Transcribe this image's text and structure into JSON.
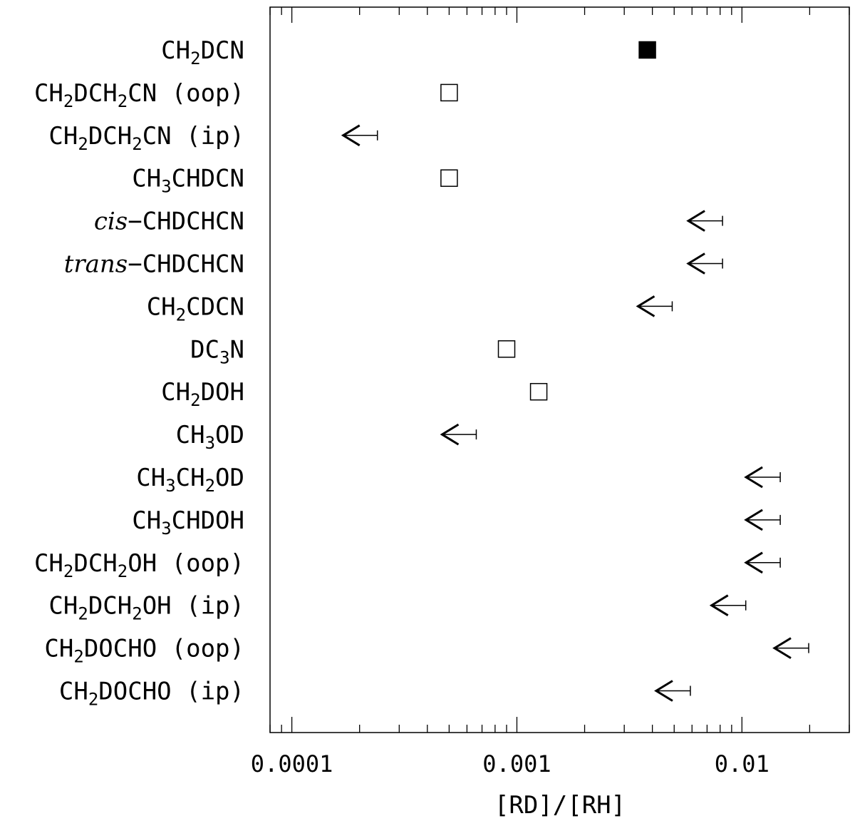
{
  "chart_data": {
    "type": "scatter",
    "xlabel": "[RD]/[RH]",
    "xscale": "log",
    "xlim": [
      8e-05,
      0.03
    ],
    "x_ticks": [
      "0.0001",
      "0.001",
      "0.01"
    ],
    "grid": false,
    "legend": "none",
    "rows": [
      {
        "label": [
          {
            "t": "CH"
          },
          {
            "t": "2",
            "sub": true
          },
          {
            "t": "DCN"
          }
        ],
        "value": 0.0038,
        "kind": "detection-filled"
      },
      {
        "label": [
          {
            "t": "CH"
          },
          {
            "t": "2",
            "sub": true
          },
          {
            "t": "DCH"
          },
          {
            "t": "2",
            "sub": true
          },
          {
            "t": "CN (oop)"
          }
        ],
        "value": 0.0005,
        "kind": "tentative-open"
      },
      {
        "label": [
          {
            "t": "CH"
          },
          {
            "t": "2",
            "sub": true
          },
          {
            "t": "DCH"
          },
          {
            "t": "2",
            "sub": true
          },
          {
            "t": "CN (ip)"
          }
        ],
        "value": 0.00024,
        "kind": "upper-limit"
      },
      {
        "label": [
          {
            "t": "CH"
          },
          {
            "t": "3",
            "sub": true
          },
          {
            "t": "CHDCN"
          }
        ],
        "value": 0.0005,
        "kind": "tentative-open"
      },
      {
        "label": [
          {
            "t": "cis",
            "it": true
          },
          {
            "t": "−CHDCHCN"
          }
        ],
        "value": 0.0082,
        "kind": "upper-limit"
      },
      {
        "label": [
          {
            "t": "trans",
            "it": true
          },
          {
            "t": "−CHDCHCN"
          }
        ],
        "value": 0.0082,
        "kind": "upper-limit"
      },
      {
        "label": [
          {
            "t": "CH"
          },
          {
            "t": "2",
            "sub": true
          },
          {
            "t": "CDCN"
          }
        ],
        "value": 0.0049,
        "kind": "upper-limit"
      },
      {
        "label": [
          {
            "t": "DC"
          },
          {
            "t": "3",
            "sub": true
          },
          {
            "t": "N"
          }
        ],
        "value": 0.0009,
        "kind": "tentative-open"
      },
      {
        "label": [
          {
            "t": "CH"
          },
          {
            "t": "2",
            "sub": true
          },
          {
            "t": "DOH"
          }
        ],
        "value": 0.00125,
        "kind": "tentative-open"
      },
      {
        "label": [
          {
            "t": "CH"
          },
          {
            "t": "3",
            "sub": true
          },
          {
            "t": "OD"
          }
        ],
        "value": 0.00066,
        "kind": "upper-limit"
      },
      {
        "label": [
          {
            "t": "CH"
          },
          {
            "t": "3",
            "sub": true
          },
          {
            "t": "CH"
          },
          {
            "t": "2",
            "sub": true
          },
          {
            "t": "OD"
          }
        ],
        "value": 0.0148,
        "kind": "upper-limit"
      },
      {
        "label": [
          {
            "t": "CH"
          },
          {
            "t": "3",
            "sub": true
          },
          {
            "t": "CHDOH"
          }
        ],
        "value": 0.0148,
        "kind": "upper-limit"
      },
      {
        "label": [
          {
            "t": "CH"
          },
          {
            "t": "2",
            "sub": true
          },
          {
            "t": "DCH"
          },
          {
            "t": "2",
            "sub": true
          },
          {
            "t": "OH (oop)"
          }
        ],
        "value": 0.0148,
        "kind": "upper-limit"
      },
      {
        "label": [
          {
            "t": "CH"
          },
          {
            "t": "2",
            "sub": true
          },
          {
            "t": "DCH"
          },
          {
            "t": "2",
            "sub": true
          },
          {
            "t": "OH (ip)"
          }
        ],
        "value": 0.0104,
        "kind": "upper-limit"
      },
      {
        "label": [
          {
            "t": "CH"
          },
          {
            "t": "2",
            "sub": true
          },
          {
            "t": "DOCHO (oop)"
          }
        ],
        "value": 0.0198,
        "kind": "upper-limit"
      },
      {
        "label": [
          {
            "t": "CH"
          },
          {
            "t": "2",
            "sub": true
          },
          {
            "t": "DOCHO (ip)"
          }
        ],
        "value": 0.0059,
        "kind": "upper-limit"
      }
    ]
  }
}
